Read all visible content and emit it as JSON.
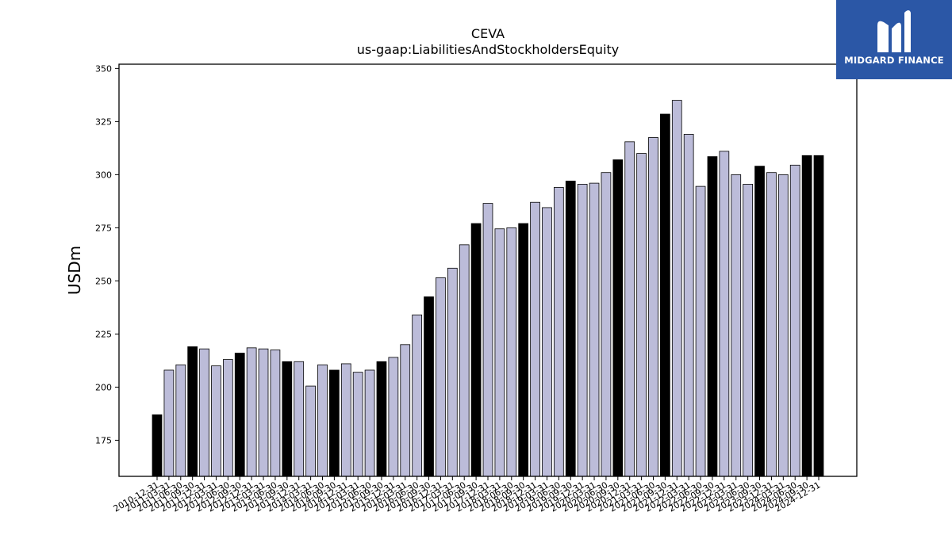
{
  "logo": {
    "text": "MIDGARD FINANCE"
  },
  "chart_data": {
    "type": "bar",
    "title": "CEVA",
    "subtitle": "us-gaap:LiabilitiesAndStockholdersEquity",
    "ylabel": "USDm",
    "xlabel": "",
    "ylim": [
      158,
      352
    ],
    "yticks": [
      175,
      200,
      225,
      250,
      275,
      300,
      325,
      350
    ],
    "colors": {
      "annual": "#000000",
      "quarter": "#bcbcd9",
      "edge": "#000000"
    },
    "categories": [
      "2010-12-31",
      "2011-03-31",
      "2011-06-30",
      "2011-09-30",
      "2011-12-31",
      "2012-03-31",
      "2012-06-30",
      "2012-09-30",
      "2012-12-31",
      "2013-03-31",
      "2013-06-30",
      "2013-09-30",
      "2013-12-31",
      "2014-03-31",
      "2014-06-30",
      "2014-09-30",
      "2014-12-31",
      "2015-03-31",
      "2015-06-30",
      "2015-09-30",
      "2015-12-31",
      "2016-03-31",
      "2016-06-30",
      "2016-09-30",
      "2016-12-31",
      "2017-03-31",
      "2017-06-30",
      "2017-09-30",
      "2017-12-31",
      "2018-03-31",
      "2018-06-30",
      "2018-09-30",
      "2018-12-31",
      "2019-03-31",
      "2019-06-30",
      "2019-09-30",
      "2019-12-31",
      "2020-03-31",
      "2020-06-30",
      "2020-09-30",
      "2020-12-31",
      "2021-03-31",
      "2021-06-30",
      "2021-09-30",
      "2021-12-31",
      "2022-03-31",
      "2022-06-30",
      "2022-09-30",
      "2022-12-31",
      "2023-03-31",
      "2023-06-30",
      "2023-09-30",
      "2023-12-31",
      "2024-03-31",
      "2024-06-30",
      "2024-09-30",
      "2024-12-31"
    ],
    "values": [
      187,
      208,
      210.5,
      219,
      218,
      210,
      213,
      216,
      218.5,
      218,
      217.5,
      212,
      212,
      200.5,
      210.5,
      208,
      211,
      207,
      208,
      212,
      214,
      220,
      234,
      242.5,
      251.5,
      256,
      267,
      277,
      286.5,
      274.5,
      275,
      277,
      287,
      284.5,
      294,
      297,
      295.5,
      296,
      301,
      307,
      315.5,
      310,
      317.5,
      328.5,
      335,
      319,
      294.5,
      308.5,
      311,
      300,
      295.5,
      304,
      301,
      300,
      304.5,
      309,
      309
    ],
    "annual": [
      true,
      false,
      false,
      true,
      false,
      false,
      false,
      true,
      false,
      false,
      false,
      true,
      false,
      false,
      false,
      true,
      false,
      false,
      false,
      true,
      false,
      false,
      false,
      true,
      false,
      false,
      false,
      true,
      false,
      false,
      false,
      true,
      false,
      false,
      false,
      true,
      false,
      false,
      false,
      true,
      false,
      false,
      false,
      true,
      false,
      false,
      false,
      true,
      false,
      false,
      false,
      true,
      false,
      false,
      false,
      true,
      true
    ]
  }
}
